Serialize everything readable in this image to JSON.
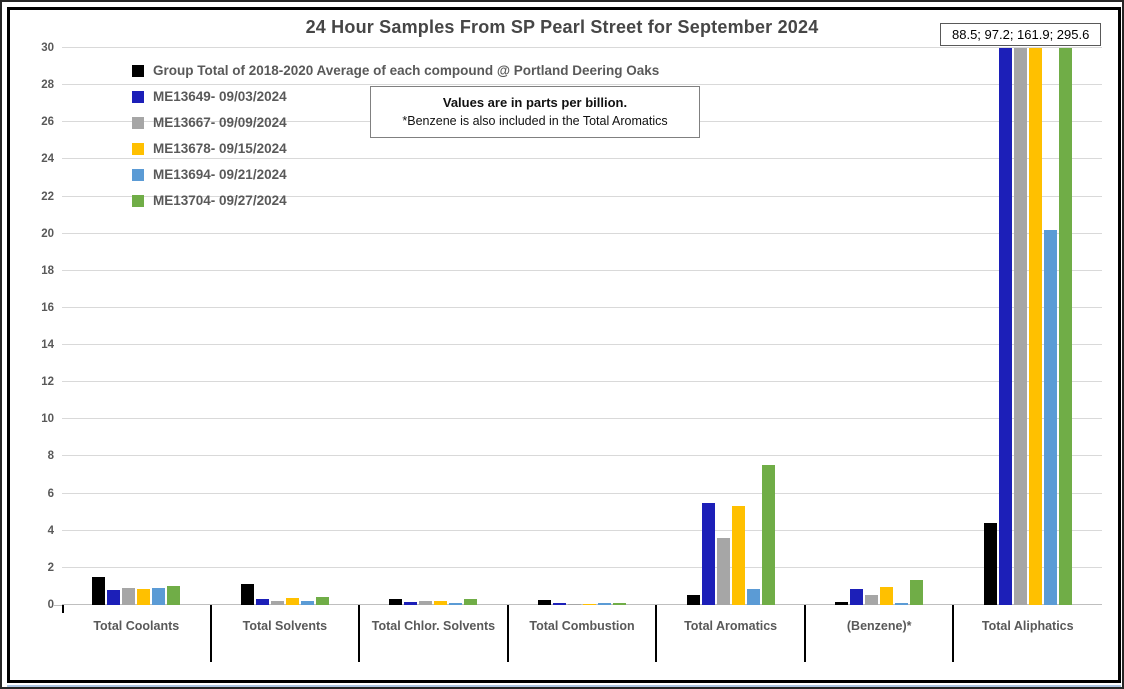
{
  "chart_data": {
    "type": "bar",
    "title": "24 Hour Samples From SP Pearl Street for September 2024",
    "xlabel": "",
    "ylabel": "",
    "ylim": [
      0,
      30
    ],
    "ytick_step": 2,
    "grid": true,
    "legend_position": "top-left",
    "units_note": "Values are in parts per billion.",
    "benzene_note": "*Benzene is also included in the Total Aromatics",
    "offscale_values_label": "88.5; 97.2; 161.9; 295.6",
    "categories": [
      "Total Coolants",
      "Total Solvents",
      "Total Chlor. Solvents",
      "Total Combustion",
      "Total Aromatics",
      "(Benzene)*",
      "Total Aliphatics"
    ],
    "series": [
      {
        "name": "Group Total of 2018-2020 Average of each compound @ Portland Deering Oaks",
        "color": "#000000",
        "values": [
          1.5,
          1.15,
          0.35,
          0.25,
          0.55,
          0.15,
          4.4
        ]
      },
      {
        "name": "ME13649- 09/03/2024",
        "color": "#1c1fb8",
        "values": [
          0.8,
          0.3,
          0.15,
          0.1,
          5.5,
          0.85,
          88.5
        ]
      },
      {
        "name": "ME13667- 09/09/2024",
        "color": "#a6a6a6",
        "values": [
          0.9,
          0.2,
          0.2,
          0.03,
          3.6,
          0.55,
          97.2
        ]
      },
      {
        "name": "ME13678- 09/15/2024",
        "color": "#ffc000",
        "values": [
          0.85,
          0.4,
          0.22,
          0.07,
          5.35,
          0.95,
          161.9
        ]
      },
      {
        "name": "ME13694- 09/21/2024",
        "color": "#5b9bd5",
        "values": [
          0.9,
          0.22,
          0.1,
          0.1,
          0.85,
          0.1,
          20.2
        ]
      },
      {
        "name": "ME13704- 09/27/2024",
        "color": "#70ad47",
        "values": [
          1.0,
          0.45,
          0.35,
          0.1,
          7.55,
          1.35,
          295.6
        ]
      }
    ]
  }
}
